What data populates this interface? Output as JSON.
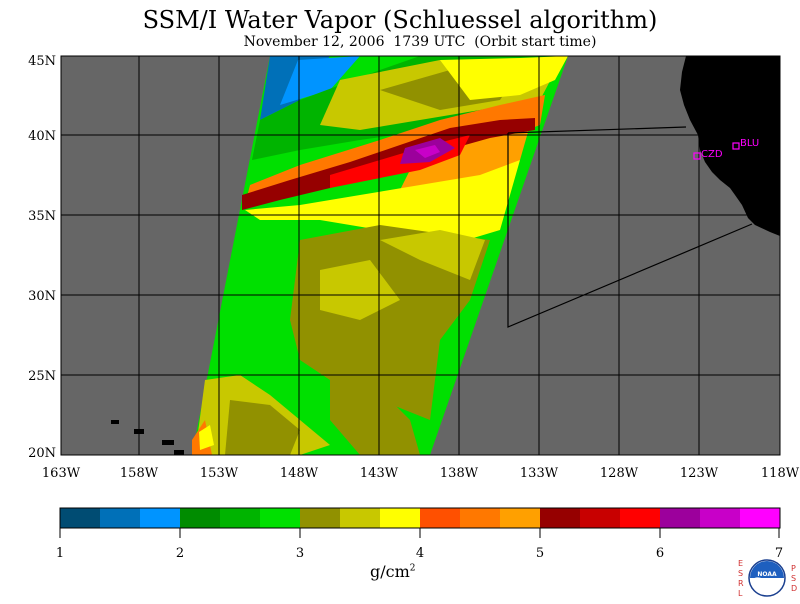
{
  "header": {
    "title": "SSM/I Water Vapor (Schluessel algorithm)",
    "subtitle": "November 12, 2006  1739 UTC  (Orbit start time)"
  },
  "map": {
    "lat_labels": [
      "45N",
      "40N",
      "35N",
      "30N",
      "25N",
      "20N"
    ],
    "lon_labels": [
      "163W",
      "158W",
      "153W",
      "148W",
      "143W",
      "138W",
      "133W",
      "128W",
      "123W",
      "118W"
    ],
    "lat_range": [
      20,
      45
    ],
    "lon_range": [
      -163,
      -118
    ],
    "ocean_color": "#666666",
    "land_color": "#000000",
    "stations": [
      {
        "code": "CZD",
        "lat": 38.6,
        "lon": -123.2
      },
      {
        "code": "BLU",
        "lat": 39.3,
        "lon": -120.9
      }
    ]
  },
  "colorbar": {
    "tick_labels": [
      "1",
      "2",
      "3",
      "4",
      "5",
      "6",
      "7"
    ],
    "unit_main": "g/cm",
    "unit_exp": "2",
    "colors": [
      "#004c73",
      "#0070b8",
      "#0094ff",
      "#008c00",
      "#00b400",
      "#00e000",
      "#919100",
      "#c8c800",
      "#ffff00",
      "#ff5000",
      "#ff7800",
      "#ffa000",
      "#960000",
      "#c80000",
      "#ff0000",
      "#9c009c",
      "#c800c8",
      "#ff00ff"
    ]
  },
  "logo": {
    "left_text": "ESRL",
    "right_text": "PSD",
    "center_text": "NOAA"
  }
}
